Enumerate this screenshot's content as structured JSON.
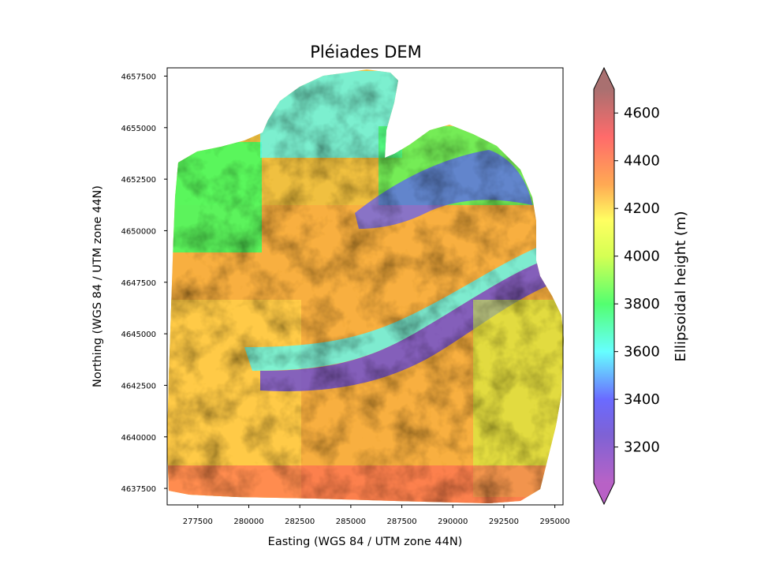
{
  "chart_data": {
    "type": "heatmap",
    "title": "Pléiades DEM",
    "xlabel": "Easting (WGS 84 / UTM zone 44N)",
    "ylabel": "Northing (WGS 84 / UTM zone 44N)",
    "xlim": [
      276000,
      295400
    ],
    "ylim": [
      4636700,
      4657900
    ],
    "x_ticks": [
      277500,
      280000,
      282500,
      285000,
      287500,
      290000,
      292500,
      295000
    ],
    "y_ticks": [
      4637500,
      4640000,
      4642500,
      4645000,
      4647500,
      4650000,
      4652500,
      4655000,
      4657500
    ],
    "colorbar": {
      "label": "Ellipsoidal height (m)",
      "vmin": 3050,
      "vmax": 4700,
      "ticks": [
        3200,
        3400,
        3600,
        3800,
        4000,
        4200,
        4400,
        4600
      ],
      "extend": "both",
      "colormap": "prism-like hillshaded (purple-blue-cyan-green-yellow-orange-red-brown)"
    },
    "colormap_stops": [
      {
        "value": 3050,
        "color": "#b050c0"
      },
      {
        "value": 3250,
        "color": "#7050d0"
      },
      {
        "value": 3400,
        "color": "#5a5aff"
      },
      {
        "value": 3600,
        "color": "#55ffff"
      },
      {
        "value": 3800,
        "color": "#40ff60"
      },
      {
        "value": 4000,
        "color": "#d0ff40"
      },
      {
        "value": 4150,
        "color": "#ffff50"
      },
      {
        "value": 4300,
        "color": "#ffa040"
      },
      {
        "value": 4500,
        "color": "#ff5a5a"
      },
      {
        "value": 4700,
        "color": "#a06060"
      }
    ]
  }
}
